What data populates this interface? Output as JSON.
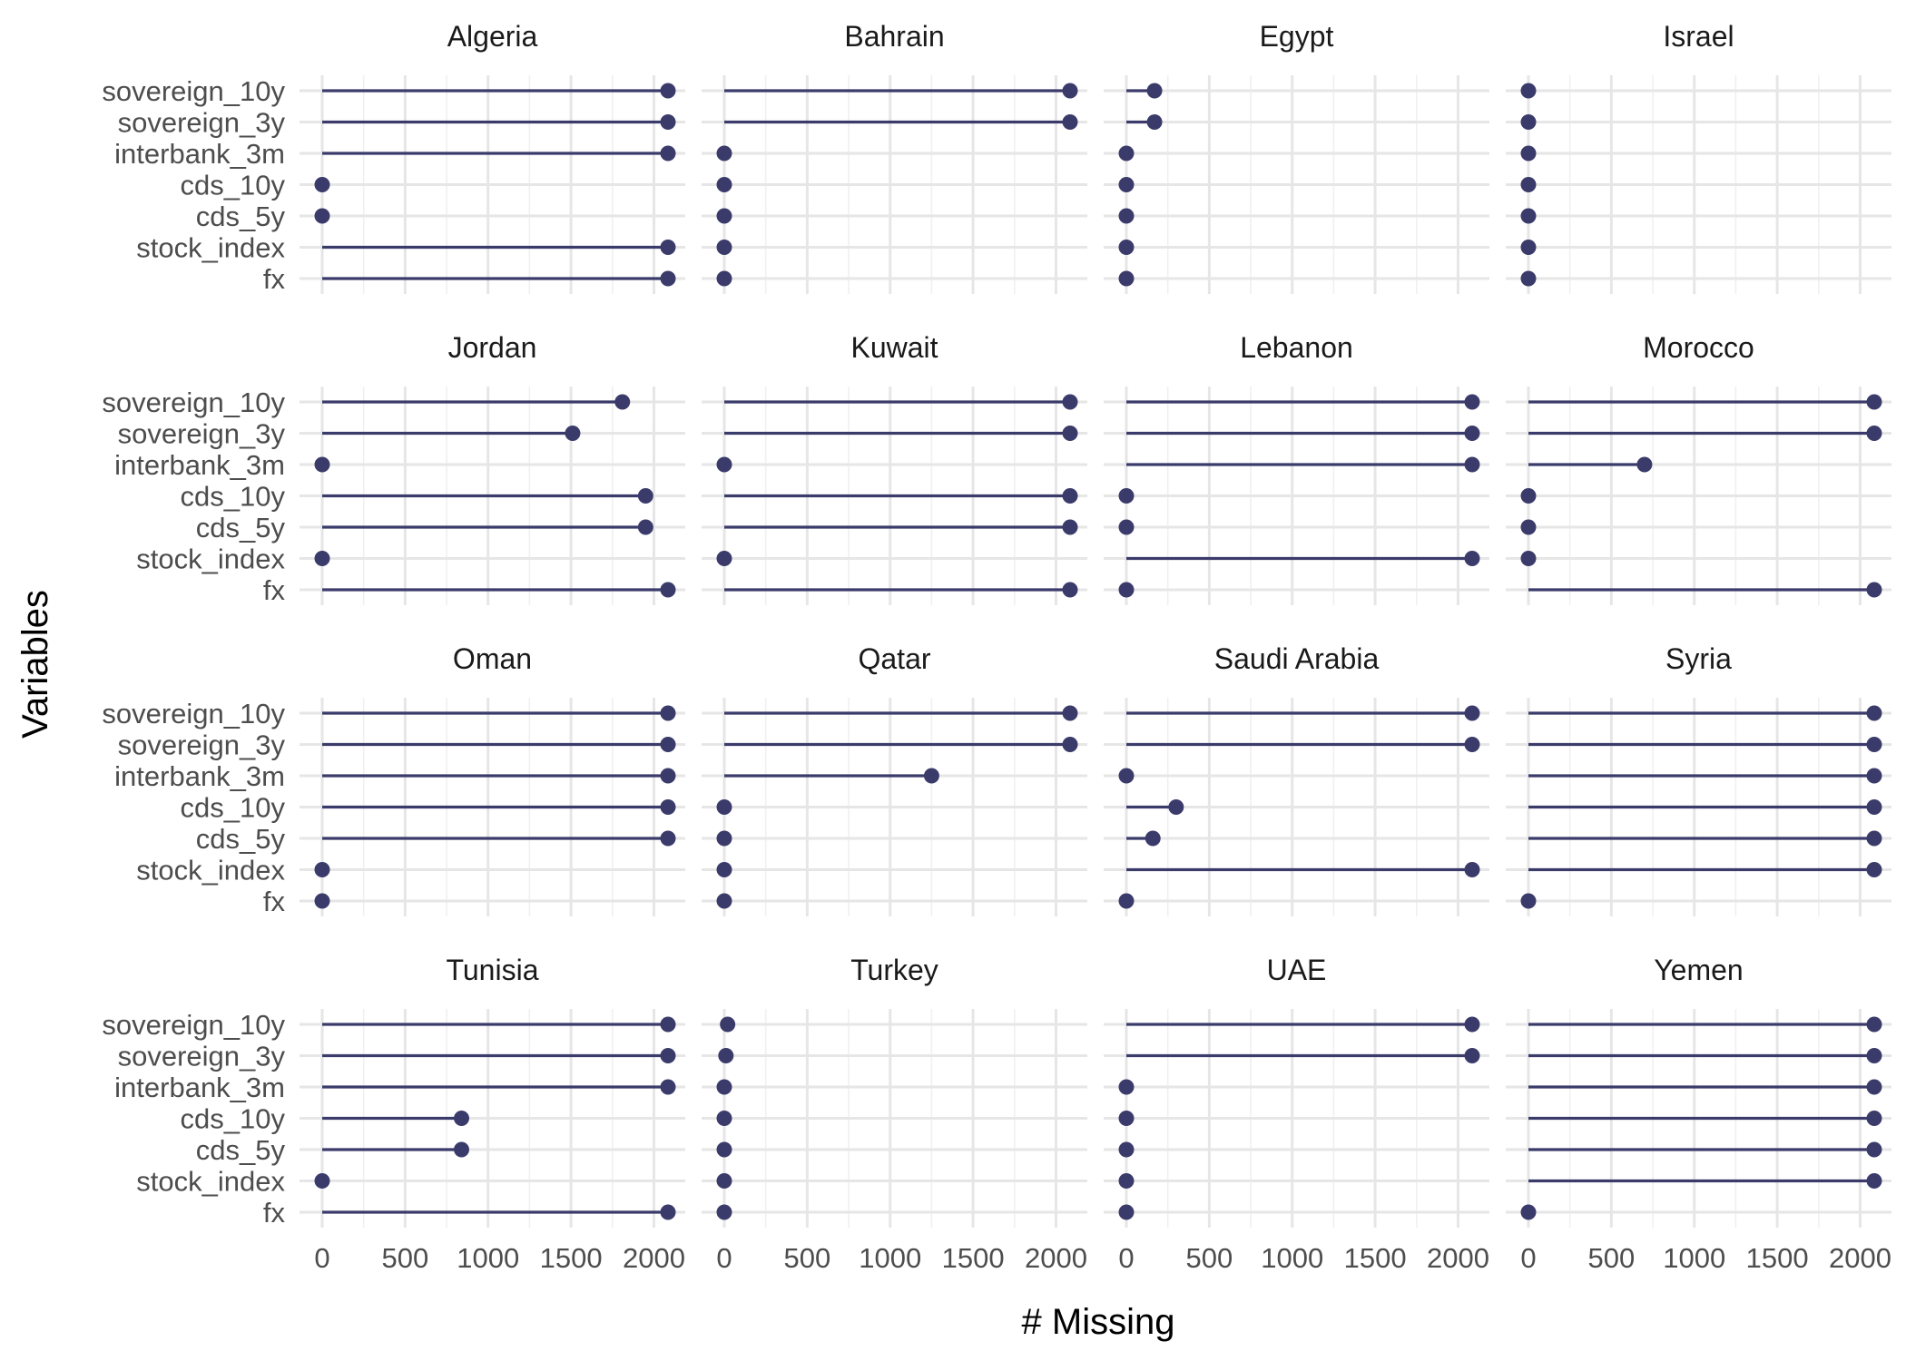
{
  "chart_data": {
    "type": "lollipop",
    "xlabel": "# Missing",
    "ylabel": "Variables",
    "xlim": [
      0,
      2100
    ],
    "xticks": [
      0,
      500,
      1000,
      1500,
      2000
    ],
    "grid": true,
    "variables": [
      "sovereign_10y",
      "sovereign_3y",
      "interbank_3m",
      "cds_10y",
      "cds_5y",
      "stock_index",
      "fx"
    ],
    "point_color": "#3b3b6b",
    "facets": [
      {
        "name": "Algeria",
        "values": [
          2085,
          2085,
          2085,
          0,
          0,
          2085,
          2085
        ]
      },
      {
        "name": "Bahrain",
        "values": [
          2085,
          2085,
          0,
          0,
          0,
          0,
          0
        ]
      },
      {
        "name": "Egypt",
        "values": [
          170,
          170,
          0,
          0,
          0,
          0,
          0
        ]
      },
      {
        "name": "Israel",
        "values": [
          0,
          0,
          0,
          0,
          0,
          0,
          0
        ]
      },
      {
        "name": "Jordan",
        "values": [
          1810,
          1510,
          0,
          1950,
          1950,
          0,
          2085
        ]
      },
      {
        "name": "Kuwait",
        "values": [
          2085,
          2085,
          0,
          2085,
          2085,
          0,
          2085
        ]
      },
      {
        "name": "Lebanon",
        "values": [
          2085,
          2085,
          2085,
          0,
          0,
          2085,
          0
        ]
      },
      {
        "name": "Morocco",
        "values": [
          2085,
          2085,
          700,
          0,
          0,
          0,
          2085
        ]
      },
      {
        "name": "Oman",
        "values": [
          2085,
          2085,
          2085,
          2085,
          2085,
          0,
          0
        ]
      },
      {
        "name": "Qatar",
        "values": [
          2085,
          2085,
          1250,
          0,
          0,
          0,
          0
        ]
      },
      {
        "name": "Saudi Arabia",
        "values": [
          2085,
          2085,
          0,
          300,
          160,
          2085,
          0
        ]
      },
      {
        "name": "Syria",
        "values": [
          2085,
          2085,
          2085,
          2085,
          2085,
          2085,
          0
        ]
      },
      {
        "name": "Tunisia",
        "values": [
          2085,
          2085,
          2085,
          840,
          840,
          0,
          2085
        ]
      },
      {
        "name": "Turkey",
        "values": [
          20,
          10,
          0,
          0,
          0,
          0,
          0
        ]
      },
      {
        "name": "UAE",
        "values": [
          2085,
          2085,
          0,
          0,
          0,
          0,
          0
        ]
      },
      {
        "name": "Yemen",
        "values": [
          2085,
          2085,
          2085,
          2085,
          2085,
          2085,
          0
        ]
      }
    ]
  }
}
